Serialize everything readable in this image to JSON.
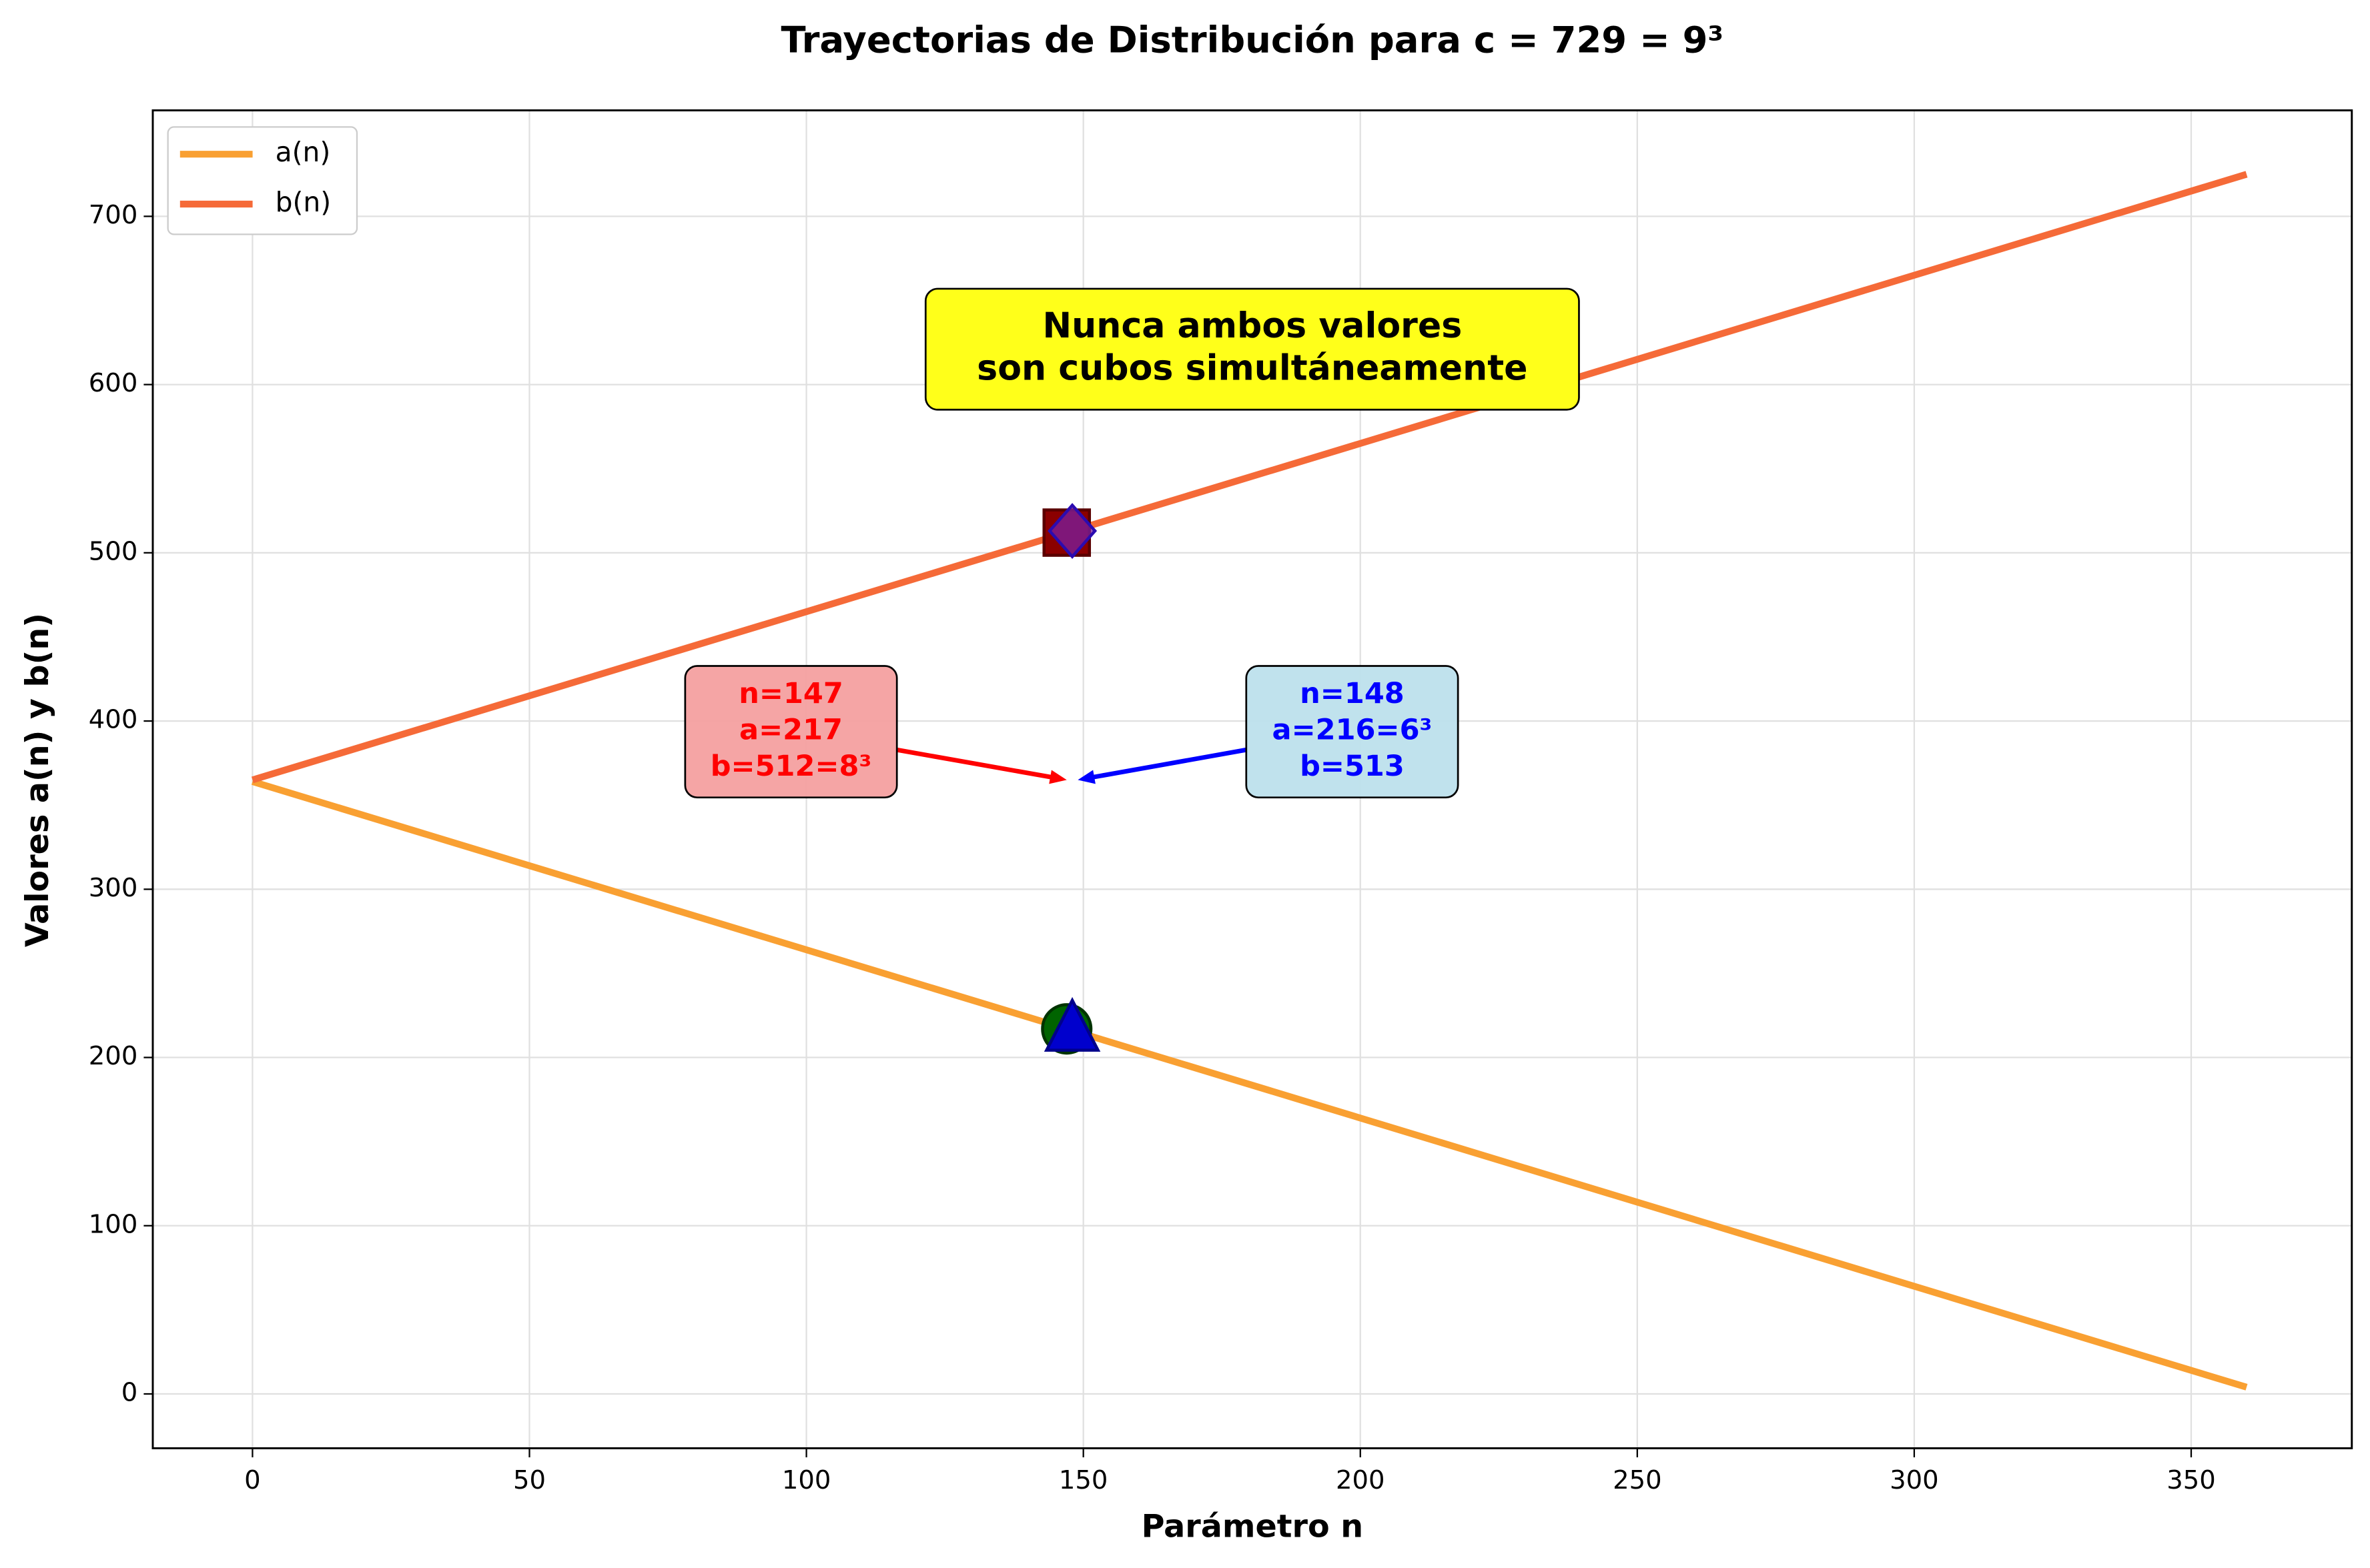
{
  "chart_data": {
    "type": "line",
    "title": "Trayectorias de Distribución para c = 729 = 9³",
    "x_label": "Parámetro n",
    "y_label": "Valores a(n) y b(n)",
    "x": [
      0,
      360
    ],
    "series": [
      {
        "name": "a(n)",
        "color": "#f9a032",
        "values": [
          364,
          4
        ]
      },
      {
        "name": "b(n)",
        "color": "#f56a38",
        "values": [
          365,
          725
        ]
      }
    ],
    "markers": [
      {
        "shape": "square",
        "color": "#8b0000",
        "x": 147,
        "y": 512
      },
      {
        "shape": "circle",
        "color": "#006400",
        "x": 147,
        "y": 217
      },
      {
        "shape": "diamond",
        "color": "#7b1fa2",
        "x": 148,
        "y": 513
      },
      {
        "shape": "triangle",
        "color": "#0000cd",
        "x": 148,
        "y": 216
      }
    ],
    "annotations": [
      {
        "lines": [
          "n=147",
          "a=217",
          "b=512=8³"
        ],
        "color": "#ff0000",
        "box_color": "#f4a0a0",
        "xy": [
          147,
          365
        ]
      },
      {
        "lines": [
          "n=148",
          "a=216=6³",
          "b=513"
        ],
        "color": "#0000ff",
        "box_color": "#bde0ec",
        "xy": [
          149,
          365
        ]
      },
      {
        "lines": [
          "Nunca ambos valores",
          "son cubos simultáneamente"
        ],
        "color": "#000000",
        "box_color": "#ffff1a"
      }
    ],
    "xlim": [
      -18,
      379
    ],
    "ylim": [
      -32.3,
      763
    ],
    "xticks": [
      0,
      50,
      100,
      150,
      200,
      250,
      300,
      350
    ],
    "yticks": [
      0,
      100,
      200,
      300,
      400,
      500,
      600,
      700
    ],
    "grid": true,
    "legend": "upper left"
  }
}
